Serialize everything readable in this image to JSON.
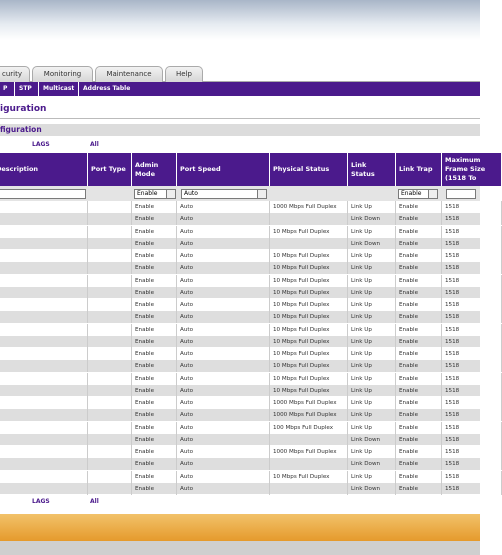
{
  "tabs": [
    "curity",
    "Monitoring",
    "Maintenance",
    "Help"
  ],
  "nav": [
    "P",
    "STP",
    "Multicast",
    "Address Table"
  ],
  "heading": "iguration",
  "section_title": "figuration",
  "top_links": [
    "LAGS",
    "All"
  ],
  "bottom_links": [
    "LAGS",
    "All"
  ],
  "table": {
    "headers": [
      "Description",
      "Port Type",
      "Admin Mode",
      "Port Speed",
      "Physical Status",
      "Link Status",
      "Link Trap",
      "Maximum Frame Size (1518 To"
    ],
    "filters": {
      "admin_mode": "Enable",
      "port_speed": "Auto",
      "link_trap": "Enable"
    },
    "rows": [
      [
        "Enable",
        "Auto",
        "1000 Mbps Full Duplex",
        "Link Up",
        "Enable",
        "1518"
      ],
      [
        "Enable",
        "Auto",
        null,
        "Link Down",
        "Enable",
        "1518"
      ],
      [
        "Enable",
        "Auto",
        "10 Mbps Full Duplex",
        "Link Up",
        "Enable",
        "1518"
      ],
      [
        "Enable",
        "Auto",
        null,
        "Link Down",
        "Enable",
        "1518"
      ],
      [
        "Enable",
        "Auto",
        "10 Mbps Full Duplex",
        "Link Up",
        "Enable",
        "1518"
      ],
      [
        "Enable",
        "Auto",
        "10 Mbps Full Duplex",
        "Link Up",
        "Enable",
        "1518"
      ],
      [
        "Enable",
        "Auto",
        "10 Mbps Full Duplex",
        "Link Up",
        "Enable",
        "1518"
      ],
      [
        "Enable",
        "Auto",
        "10 Mbps Full Duplex",
        "Link Up",
        "Enable",
        "1518"
      ],
      [
        "Enable",
        "Auto",
        "10 Mbps Full Duplex",
        "Link Up",
        "Enable",
        "1518"
      ],
      [
        "Enable",
        "Auto",
        "10 Mbps Full Duplex",
        "Link Up",
        "Enable",
        "1518"
      ],
      [
        "Enable",
        "Auto",
        "10 Mbps Full Duplex",
        "Link Up",
        "Enable",
        "1518"
      ],
      [
        "Enable",
        "Auto",
        "10 Mbps Full Duplex",
        "Link Up",
        "Enable",
        "1518"
      ],
      [
        "Enable",
        "Auto",
        "10 Mbps Full Duplex",
        "Link Up",
        "Enable",
        "1518"
      ],
      [
        "Enable",
        "Auto",
        "10 Mbps Full Duplex",
        "Link Up",
        "Enable",
        "1518"
      ],
      [
        "Enable",
        "Auto",
        "10 Mbps Full Duplex",
        "Link Up",
        "Enable",
        "1518"
      ],
      [
        "Enable",
        "Auto",
        "10 Mbps Full Duplex",
        "Link Up",
        "Enable",
        "1518"
      ],
      [
        "Enable",
        "Auto",
        "1000 Mbps Full Duplex",
        "Link Up",
        "Enable",
        "1518"
      ],
      [
        "Enable",
        "Auto",
        "1000 Mbps Full Duplex",
        "Link Up",
        "Enable",
        "1518"
      ],
      [
        "Enable",
        "Auto",
        "100 Mbps Full Duplex",
        "Link Up",
        "Enable",
        "1518"
      ],
      [
        "Enable",
        "Auto",
        null,
        "Link Down",
        "Enable",
        "1518"
      ],
      [
        "Enable",
        "Auto",
        "1000 Mbps Full Duplex",
        "Link Up",
        "Enable",
        "1518"
      ],
      [
        "Enable",
        "Auto",
        null,
        "Link Down",
        "Enable",
        "1518"
      ],
      [
        "Enable",
        "Auto",
        "10 Mbps Full Duplex",
        "Link Up",
        "Enable",
        "1518"
      ],
      [
        "Enable",
        "Auto",
        null,
        "Link Down",
        "Enable",
        "1518"
      ]
    ]
  }
}
